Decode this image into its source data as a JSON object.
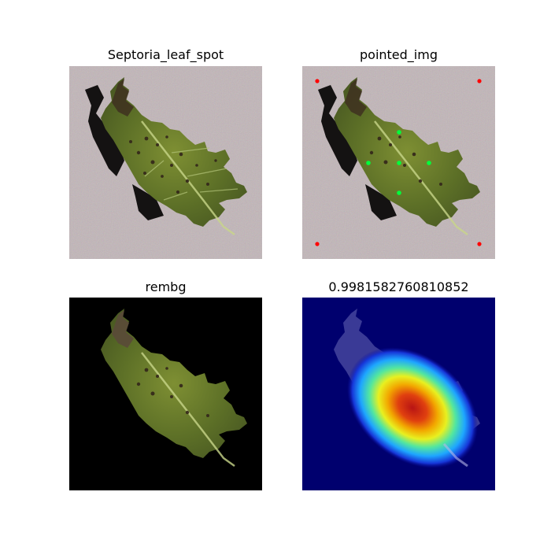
{
  "panels": [
    {
      "title": "Septoria_leaf_spot",
      "kind": "photo"
    },
    {
      "title": "pointed_img",
      "kind": "photo-with-points",
      "points": {
        "corner_color": "#ff0000",
        "center_color": "#00ff3c"
      }
    },
    {
      "title": "rembg",
      "kind": "background-removed",
      "background_color": "#000000"
    },
    {
      "title": "0.9981582760810852",
      "kind": "heatmap-overlay",
      "colormap": "jet",
      "background_color": "#00006e"
    }
  ],
  "colors": {
    "ground": "#a89a9c",
    "leaf_dark": "#4f6224",
    "leaf_light": "#8a9b3a",
    "spot": "#3a2a1a",
    "shadow": "#141212"
  }
}
